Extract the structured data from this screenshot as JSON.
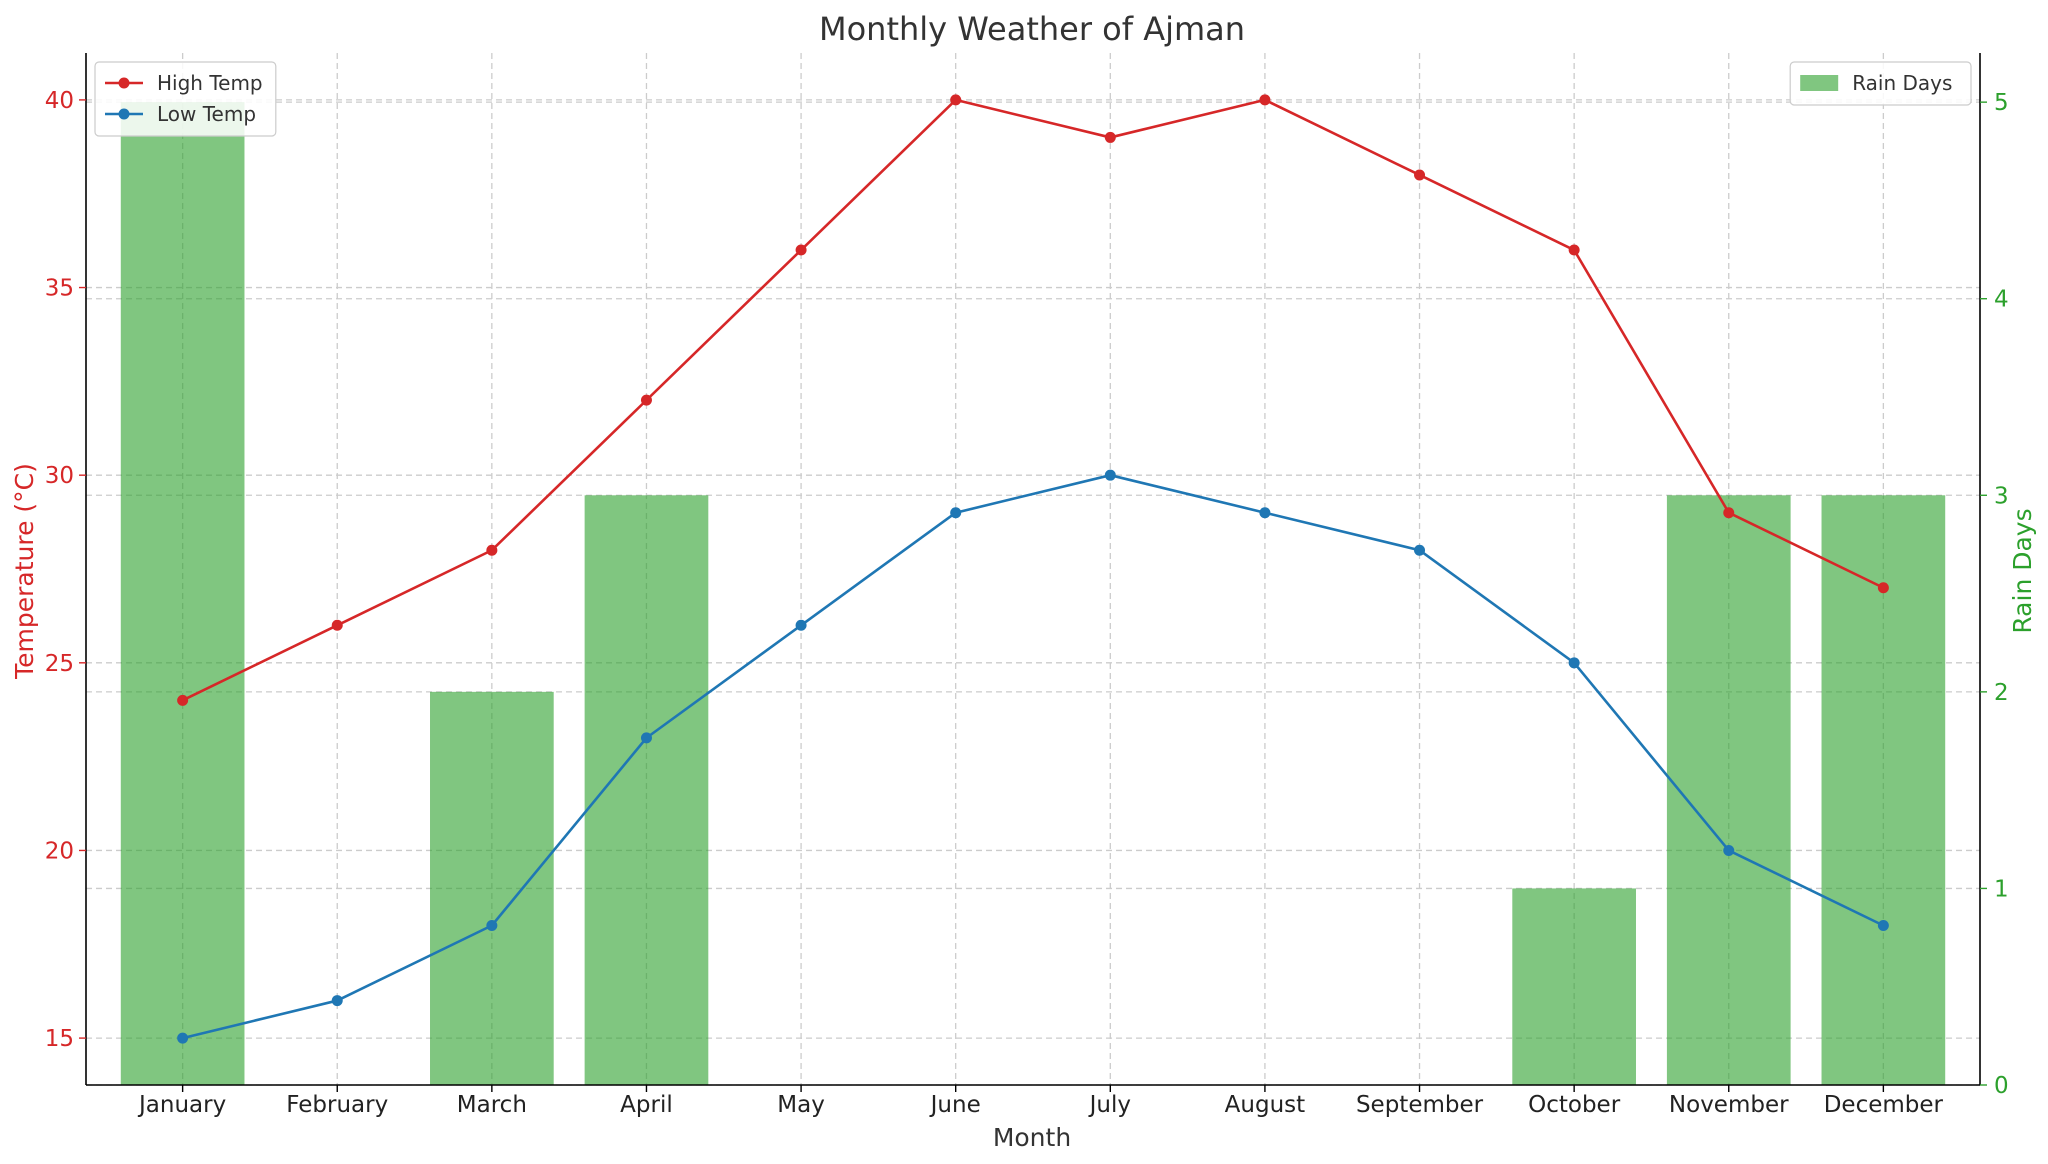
{
  "chart_data": {
    "type": "bar+line",
    "title": "Monthly Weather of Ajman",
    "xlabel": "Month",
    "ylabel_left": "Temperature (°C)",
    "ylabel_right": "Rain Days",
    "categories": [
      "January",
      "February",
      "March",
      "April",
      "May",
      "June",
      "July",
      "August",
      "September",
      "October",
      "November",
      "December"
    ],
    "y_left": {
      "lim": [
        13.75,
        41.25
      ],
      "ticks": [
        15,
        20,
        25,
        30,
        35,
        40
      ],
      "color": "#d62728"
    },
    "y_right": {
      "lim": [
        0,
        5.25
      ],
      "ticks": [
        0,
        1,
        2,
        3,
        4,
        5
      ],
      "color": "#2ca02c"
    },
    "grid": true,
    "series": [
      {
        "name": "High Temp",
        "type": "line",
        "axis": "left",
        "color": "#d62728",
        "values": [
          24,
          26,
          28,
          32,
          36,
          40,
          39,
          40,
          38,
          36,
          29,
          27
        ]
      },
      {
        "name": "Low Temp",
        "type": "line",
        "axis": "left",
        "color": "#1f77b4",
        "values": [
          15,
          16,
          18,
          23,
          26,
          29,
          30,
          29,
          28,
          25,
          20,
          18
        ]
      },
      {
        "name": "Rain Days",
        "type": "bar",
        "axis": "right",
        "color": "#2ca02c",
        "opacity": 0.6,
        "values": [
          5,
          0,
          2,
          3,
          0,
          0,
          0,
          0,
          0,
          1,
          3,
          3
        ]
      }
    ],
    "legends": [
      {
        "placement": "top-left",
        "entries": [
          "High Temp",
          "Low Temp"
        ]
      },
      {
        "placement": "top-right",
        "entries": [
          "Rain Days"
        ]
      }
    ]
  }
}
